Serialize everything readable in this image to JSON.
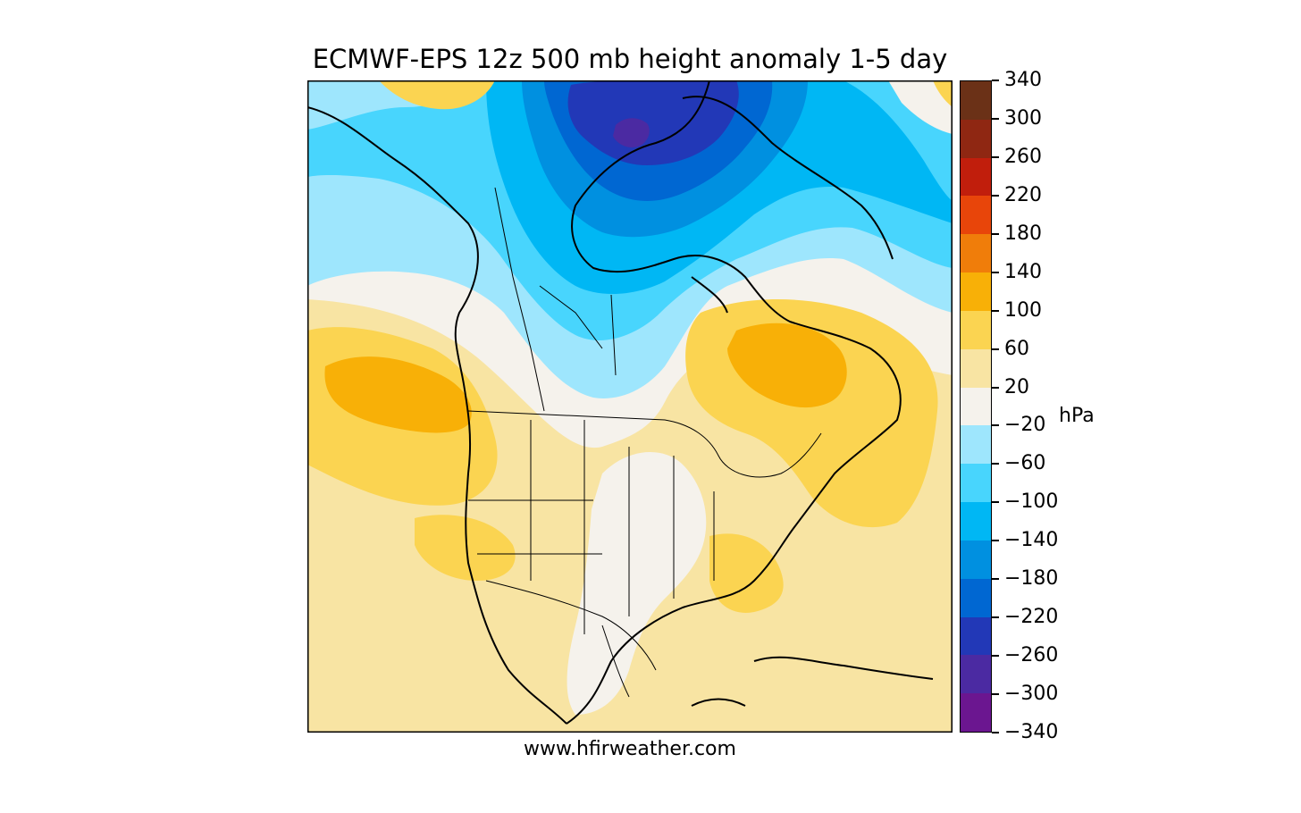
{
  "title": "ECMWF-EPS 12z 500 mb height anomaly 1-5 day",
  "credit": "www.hfirweather.com",
  "colorbar": {
    "unit": "hPa",
    "tick_labels": [
      "340",
      "300",
      "260",
      "220",
      "180",
      "140",
      "100",
      "60",
      "20",
      "−20",
      "−60",
      "−100",
      "−140",
      "−180",
      "−220",
      "−260",
      "−300",
      "−340"
    ],
    "colors": [
      "#6b3117",
      "#8f2712",
      "#c11e0c",
      "#e8450a",
      "#f07d0a",
      "#f8b007",
      "#fbd451",
      "#f8e4a3",
      "#f5f2ec",
      "#9ee6fd",
      "#48d5fd",
      "#00b7f4",
      "#0090e0",
      "#0067d2",
      "#2238b7",
      "#4b2aa2",
      "#6b1690"
    ]
  },
  "map_colors": {
    "ocean_base": "#f8e4a3",
    "anomaly_pos_60_100": "#fbd451",
    "anomaly_pos_100_140": "#f8b007",
    "neutral": "#f5f2ec",
    "anomaly_neg_20_60": "#9ee6fd",
    "anomaly_neg_60_100": "#48d5fd",
    "anomaly_neg_100_140": "#00b7f4",
    "anomaly_neg_140_180": "#0090e0",
    "anomaly_neg_180_220": "#0067d2",
    "anomaly_neg_220_260": "#2238b7",
    "anomaly_neg_260_300": "#4b2aa2"
  }
}
